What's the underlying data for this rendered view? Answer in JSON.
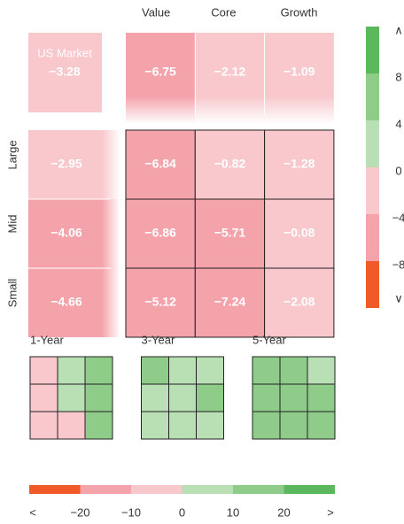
{
  "chart_data": {
    "type": "heatmap",
    "columns": [
      "Value",
      "Core",
      "Growth"
    ],
    "rows": [
      "Large",
      "Mid",
      "Small"
    ],
    "market": {
      "label": "US Market",
      "value": -3.28,
      "value_label": "−3.28"
    },
    "column_totals": {
      "values": [
        -6.75,
        -2.12,
        -1.09
      ],
      "value_labels": [
        "−6.75",
        "−2.12",
        "−1.09"
      ]
    },
    "row_totals": {
      "values": [
        -2.95,
        -4.06,
        -4.66
      ],
      "value_labels": [
        "−2.95",
        "−4.06",
        "−4.66"
      ]
    },
    "values": [
      [
        -6.84,
        -0.82,
        -1.28
      ],
      [
        -6.86,
        -5.71,
        -0.08
      ],
      [
        -5.12,
        -7.24,
        -2.08
      ]
    ],
    "value_labels": [
      [
        "−6.84",
        "−0.82",
        "−1.28"
      ],
      [
        "−6.86",
        "−5.71",
        "−0.08"
      ],
      [
        "−5.12",
        "−7.24",
        "−2.08"
      ]
    ],
    "colors": [
      "#f05a28",
      "#f4a3ab",
      "#f8c8cc",
      "#b9dfb5",
      "#8fcc8a",
      "#5cb85c"
    ],
    "scale": {
      "ticks": [
        8,
        4,
        0,
        {
          "value": -4,
          "label": "−4"
        },
        {
          "value": -8,
          "label": "−8"
        }
      ],
      "top_label": "∧",
      "bottom_label": "∨"
    },
    "periods": [
      {
        "name": "1-Year",
        "values": [
          [
            -5,
            5,
            15
          ],
          [
            -5,
            5,
            15
          ],
          [
            -5,
            -5,
            15
          ]
        ]
      },
      {
        "name": "3-Year",
        "values": [
          [
            15,
            5,
            5
          ],
          [
            5,
            5,
            15
          ],
          [
            5,
            5,
            5
          ]
        ]
      },
      {
        "name": "5-Year",
        "values": [
          [
            15,
            15,
            5
          ],
          [
            15,
            15,
            15
          ],
          [
            15,
            15,
            15
          ]
        ]
      }
    ],
    "period_scale": {
      "ticks": [
        {
          "value": -20,
          "label": "−20"
        },
        {
          "value": -10,
          "label": "−10"
        },
        0,
        10,
        20
      ],
      "low_label": "<",
      "high_label": ">"
    }
  }
}
